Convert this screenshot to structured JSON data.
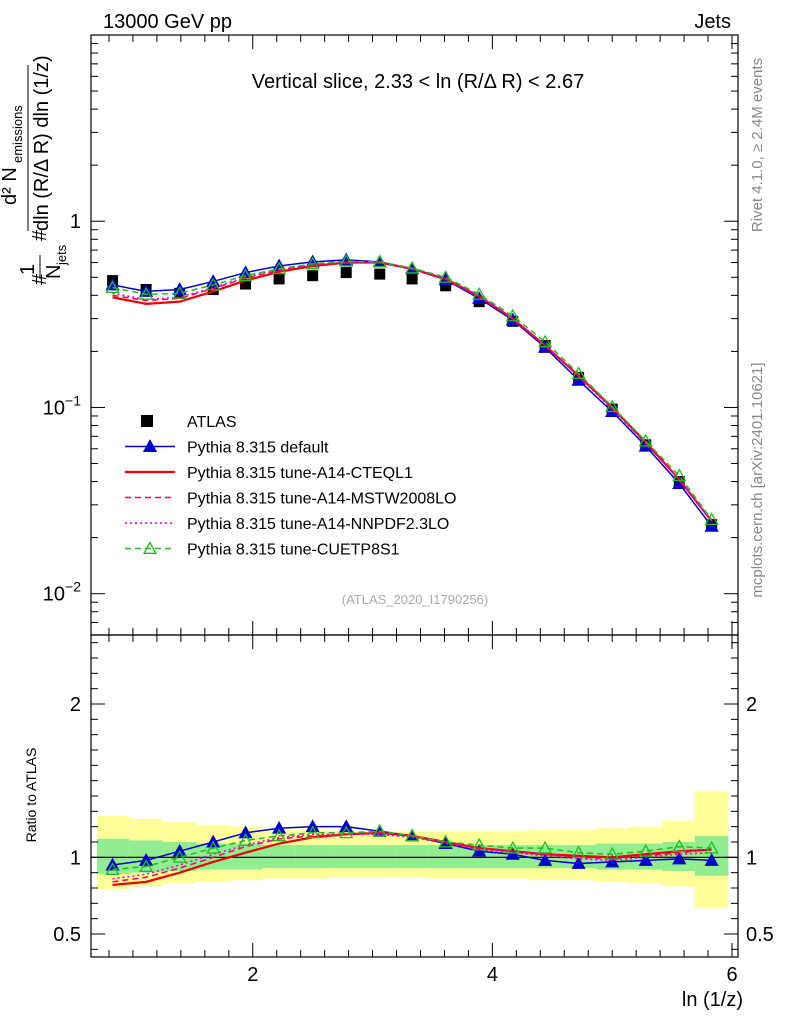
{
  "header": {
    "energy": "13000 GeV pp",
    "process": "Jets",
    "slice_title": "Vertical slice, 2.33 < ln (R/Δ R) < 2.67",
    "analysis_id": "(ATLAS_2020_I1790256)",
    "rivet_label": "Rivet 4.1.0, ≥ 2.4M events",
    "mcplots_label": "mcplots.cern.ch [arXiv:2401.10621]"
  },
  "chart_data": [
    {
      "type": "line",
      "panel": "main",
      "title": "Vertical slice, 2.33 < ln (R/Δ R) < 2.67",
      "xlabel": "ln (1/z)",
      "ylabel": "#frac{1}{N_jets} #frac{d² N_emissions}{dln (R/Δ R) dln (1/z)}",
      "yscale": "log",
      "xlim": [
        0.65,
        6.05
      ],
      "ylim": [
        0.006,
        10
      ],
      "y_tick_labels": [
        {
          "value": 0.01,
          "label": "10^-2"
        },
        {
          "value": 0.1,
          "label": "10^-1"
        },
        {
          "value": 1,
          "label": "1"
        }
      ],
      "x": [
        0.83,
        1.11,
        1.39,
        1.67,
        1.94,
        2.22,
        2.5,
        2.78,
        3.06,
        3.33,
        3.61,
        3.89,
        4.17,
        4.44,
        4.72,
        5.0,
        5.28,
        5.56,
        5.83
      ],
      "series": [
        {
          "name": "ATLAS",
          "style": "data",
          "color": "#000000",
          "values": [
            0.48,
            0.43,
            0.41,
            0.43,
            0.46,
            0.49,
            0.51,
            0.53,
            0.52,
            0.49,
            0.45,
            0.37,
            0.29,
            0.215,
            0.145,
            0.098,
            0.063,
            0.04,
            0.0235
          ]
        },
        {
          "name": "Pythia 8.315 default",
          "style": "solid-triangle",
          "color": "#0000cc",
          "values": [
            0.455,
            0.42,
            0.43,
            0.475,
            0.53,
            0.575,
            0.605,
            0.62,
            0.605,
            0.555,
            0.485,
            0.385,
            0.295,
            0.21,
            0.14,
            0.095,
            0.062,
            0.039,
            0.023
          ]
        },
        {
          "name": "Pythia 8.315 tune-A14-CTEQL1",
          "style": "solid",
          "color": "#ee0000",
          "values": [
            0.39,
            0.36,
            0.37,
            0.42,
            0.48,
            0.535,
            0.575,
            0.6,
            0.6,
            0.555,
            0.49,
            0.395,
            0.3,
            0.215,
            0.148,
            0.1,
            0.065,
            0.041,
            0.0245
          ]
        },
        {
          "name": "Pythia 8.315 tune-A14-MSTW2008LO",
          "style": "dashed",
          "color": "#ff0055",
          "values": [
            0.4,
            0.375,
            0.385,
            0.435,
            0.495,
            0.545,
            0.58,
            0.605,
            0.6,
            0.555,
            0.49,
            0.395,
            0.3,
            0.215,
            0.147,
            0.099,
            0.064,
            0.041,
            0.0245
          ]
        },
        {
          "name": "Pythia 8.315 tune-A14-NNPDF2.3LO",
          "style": "dotted",
          "color": "#dd00dd",
          "values": [
            0.41,
            0.38,
            0.39,
            0.44,
            0.5,
            0.55,
            0.585,
            0.605,
            0.6,
            0.555,
            0.49,
            0.395,
            0.3,
            0.215,
            0.146,
            0.098,
            0.064,
            0.041,
            0.0245
          ]
        },
        {
          "name": "Pythia 8.315 tune-CUETP8S1",
          "style": "dashed-open-triangle",
          "color": "#22bb22",
          "values": [
            0.44,
            0.405,
            0.41,
            0.455,
            0.51,
            0.555,
            0.59,
            0.61,
            0.605,
            0.56,
            0.5,
            0.405,
            0.31,
            0.225,
            0.152,
            0.101,
            0.066,
            0.043,
            0.025
          ]
        }
      ]
    },
    {
      "type": "line",
      "panel": "ratio",
      "xlabel": "ln (1/z)",
      "ylabel": "Ratio to ATLAS",
      "xlim": [
        0.65,
        6.05
      ],
      "ylim": [
        0.35,
        2.45
      ],
      "x_tick_labels": [
        "2",
        "4",
        "6"
      ],
      "y_tick_labels": [
        "0.5",
        "1",
        "2"
      ],
      "x": [
        0.83,
        1.11,
        1.39,
        1.67,
        1.94,
        2.22,
        2.5,
        2.78,
        3.06,
        3.33,
        3.61,
        3.89,
        4.17,
        4.44,
        4.72,
        5.0,
        5.28,
        5.56,
        5.83
      ],
      "bin_edges": [
        0.7,
        0.97,
        1.25,
        1.53,
        1.81,
        2.08,
        2.36,
        2.64,
        2.92,
        3.19,
        3.47,
        3.75,
        4.03,
        4.31,
        4.58,
        4.86,
        5.14,
        5.42,
        5.69,
        5.97
      ],
      "band_inner": {
        "name": "stat uncertainty",
        "color": "#90ee90",
        "lo": [
          0.89,
          0.9,
          0.91,
          0.92,
          0.92,
          0.93,
          0.93,
          0.93,
          0.93,
          0.93,
          0.93,
          0.93,
          0.93,
          0.93,
          0.93,
          0.92,
          0.92,
          0.91,
          0.88
        ],
        "hi": [
          1.12,
          1.11,
          1.1,
          1.09,
          1.09,
          1.08,
          1.08,
          1.08,
          1.08,
          1.08,
          1.08,
          1.08,
          1.08,
          1.08,
          1.08,
          1.09,
          1.09,
          1.1,
          1.14
        ]
      },
      "band_outer": {
        "name": "total uncertainty",
        "color": "#ffff99",
        "lo": [
          0.79,
          0.81,
          0.83,
          0.84,
          0.85,
          0.86,
          0.86,
          0.87,
          0.87,
          0.87,
          0.86,
          0.86,
          0.86,
          0.85,
          0.85,
          0.84,
          0.83,
          0.81,
          0.67
        ],
        "hi": [
          1.27,
          1.25,
          1.23,
          1.21,
          1.2,
          1.18,
          1.18,
          1.17,
          1.17,
          1.17,
          1.17,
          1.17,
          1.17,
          1.18,
          1.18,
          1.19,
          1.2,
          1.24,
          1.43
        ]
      },
      "series": [
        {
          "name": "Pythia 8.315 default",
          "color": "#0000cc",
          "style": "solid-triangle",
          "values": [
            0.95,
            0.98,
            1.04,
            1.1,
            1.16,
            1.19,
            1.2,
            1.2,
            1.17,
            1.14,
            1.09,
            1.04,
            1.02,
            0.98,
            0.96,
            0.97,
            0.98,
            0.99,
            0.98
          ]
        },
        {
          "name": "Pythia 8.315 tune-A14-CTEQL1",
          "color": "#ee0000",
          "style": "solid",
          "values": [
            0.82,
            0.84,
            0.9,
            0.97,
            1.03,
            1.09,
            1.13,
            1.15,
            1.16,
            1.14,
            1.1,
            1.06,
            1.04,
            1.02,
            1.01,
            1.0,
            1.02,
            1.04,
            1.05
          ]
        },
        {
          "name": "Pythia 8.315 tune-A14-MSTW2008LO",
          "color": "#ff0055",
          "style": "dashed",
          "values": [
            0.84,
            0.87,
            0.93,
            1.0,
            1.07,
            1.12,
            1.14,
            1.15,
            1.16,
            1.14,
            1.1,
            1.06,
            1.04,
            1.02,
            1.0,
            0.99,
            1.01,
            1.03,
            1.05
          ]
        },
        {
          "name": "Pythia 8.315 tune-A14-NNPDF2.3LO",
          "color": "#dd00dd",
          "style": "dotted",
          "values": [
            0.86,
            0.89,
            0.95,
            1.02,
            1.08,
            1.13,
            1.15,
            1.15,
            1.15,
            1.13,
            1.09,
            1.05,
            1.03,
            1.01,
            0.99,
            0.98,
            1.0,
            1.02,
            1.03
          ]
        },
        {
          "name": "Pythia 8.315 tune-CUETP8S1",
          "color": "#22bb22",
          "style": "dashed-open-triangle",
          "values": [
            0.92,
            0.94,
            1.0,
            1.06,
            1.11,
            1.14,
            1.16,
            1.16,
            1.17,
            1.14,
            1.1,
            1.08,
            1.06,
            1.06,
            1.03,
            1.02,
            1.04,
            1.07,
            1.06
          ]
        }
      ]
    }
  ]
}
